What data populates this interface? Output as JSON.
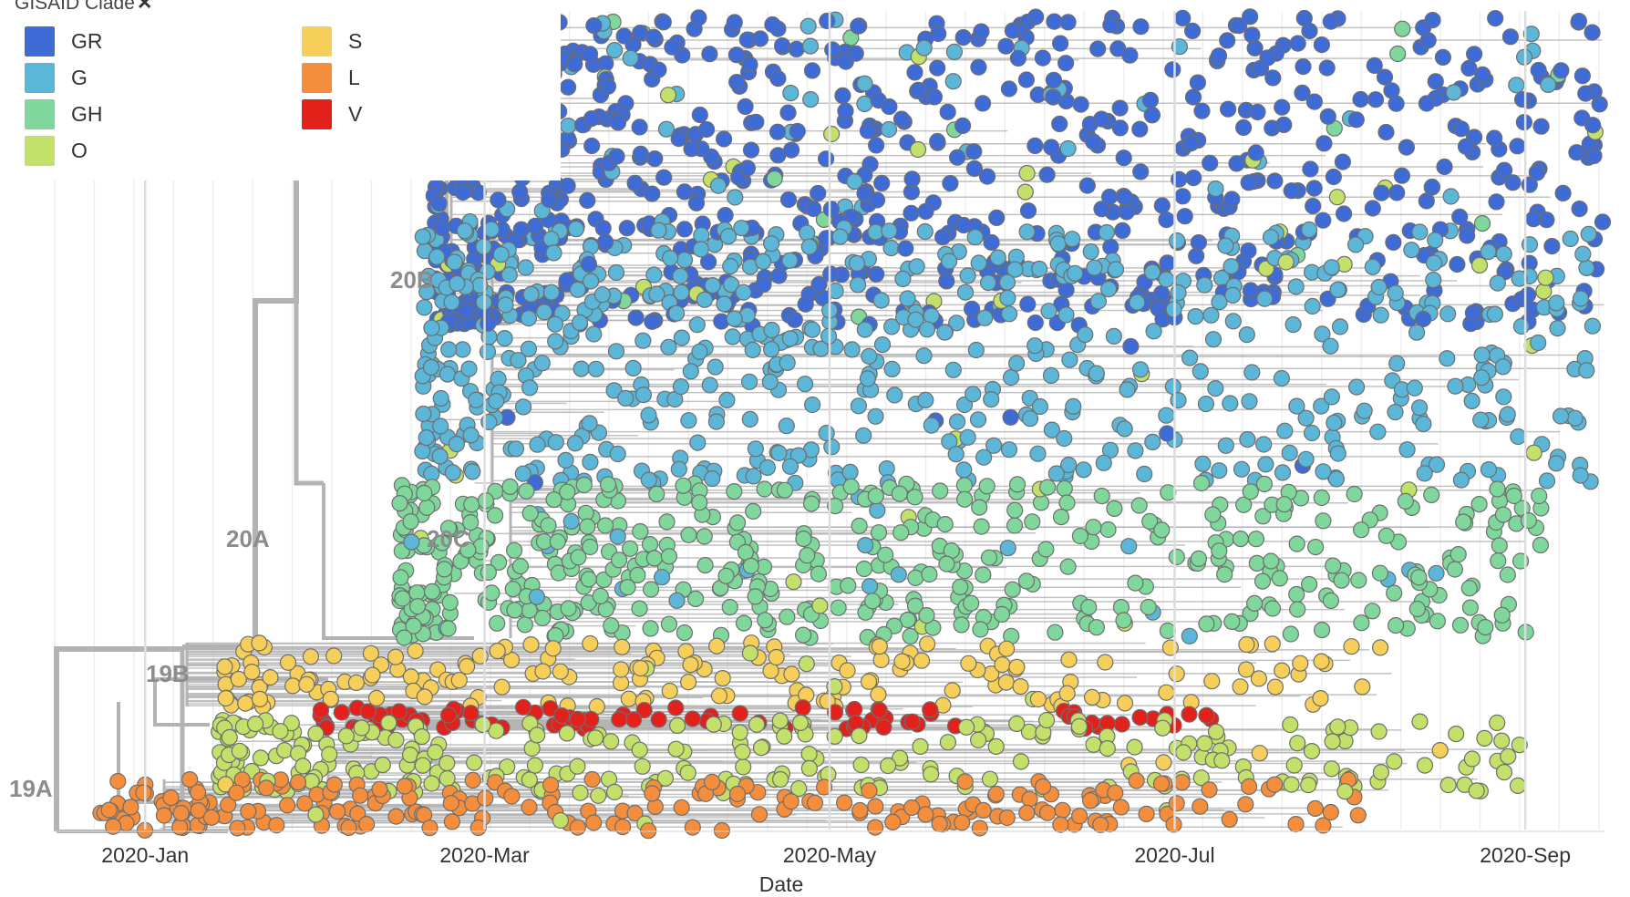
{
  "chart_data": {
    "type": "scatter",
    "subtype": "phylogenetic time tree",
    "legend": {
      "title": "GISAID Clade",
      "placement": "top-left",
      "entries": [
        {
          "name": "GR",
          "color": "#3e6bd6"
        },
        {
          "name": "G",
          "color": "#5bb6d8"
        },
        {
          "name": "GH",
          "color": "#7fd79c"
        },
        {
          "name": "O",
          "color": "#c2e06a"
        },
        {
          "name": "S",
          "color": "#f5cf5a"
        },
        {
          "name": "L",
          "color": "#f48e3c"
        },
        {
          "name": "V",
          "color": "#e3211c"
        }
      ]
    },
    "xlabel": "Date",
    "x_ticks": [
      "2020-Jan",
      "2020-Mar",
      "2020-May",
      "2020-Jul",
      "2020-Sep"
    ],
    "xlim": [
      "2019-12-16",
      "2020-09-15"
    ],
    "grid": true,
    "clade_labels": [
      "19A",
      "19B",
      "20A",
      "20B",
      "20C"
    ],
    "series": [
      {
        "name": "GR",
        "date_range": [
          "2020-02-21",
          "2020-09-15"
        ]
      },
      {
        "name": "G",
        "date_range": [
          "2020-02-19",
          "2020-09-13"
        ]
      },
      {
        "name": "GH",
        "date_range": [
          "2020-02-15",
          "2020-09-05"
        ]
      },
      {
        "name": "O",
        "date_range": [
          "2020-01-14",
          "2020-08-31"
        ]
      },
      {
        "name": "S",
        "date_range": [
          "2020-01-15",
          "2020-08-10"
        ]
      },
      {
        "name": "L",
        "date_range": [
          "2019-12-24",
          "2020-08-05"
        ]
      },
      {
        "name": "V",
        "date_range": [
          "2020-02-01",
          "2020-07-08"
        ]
      }
    ]
  },
  "colors": {
    "branch": "#b3b3b3",
    "grid": "#eeeeee",
    "point_stroke": "#6e6e6e"
  }
}
